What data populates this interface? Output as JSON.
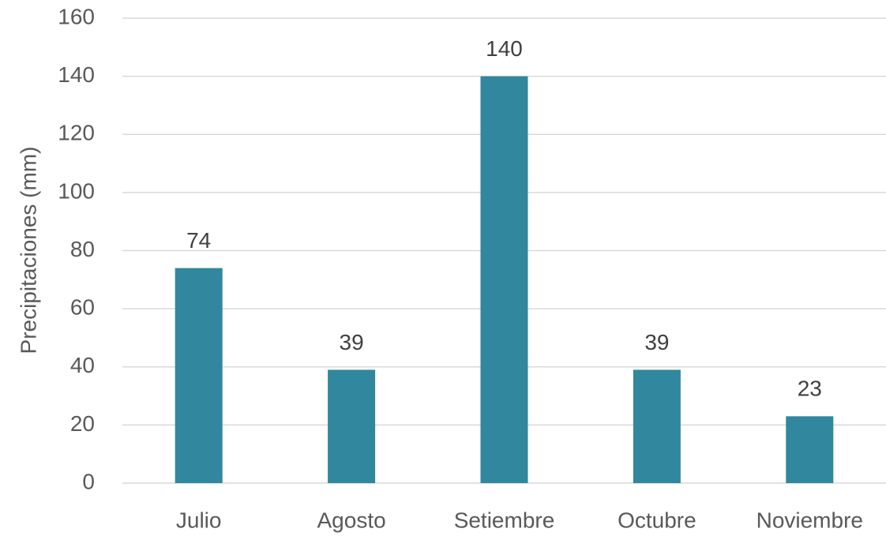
{
  "chart_data": {
    "type": "bar",
    "y_label": "Precipitaciones (mm)",
    "categories": [
      "Julio",
      "Agosto",
      "Setiembre",
      "Octubre",
      "Noviembre"
    ],
    "values": [
      74,
      39,
      140,
      39,
      23
    ],
    "color": "#31879d",
    "ylim": [
      0,
      160
    ],
    "yticks": [
      0,
      20,
      40,
      60,
      80,
      100,
      120,
      140,
      160
    ],
    "grid": true,
    "data_labels": true
  }
}
